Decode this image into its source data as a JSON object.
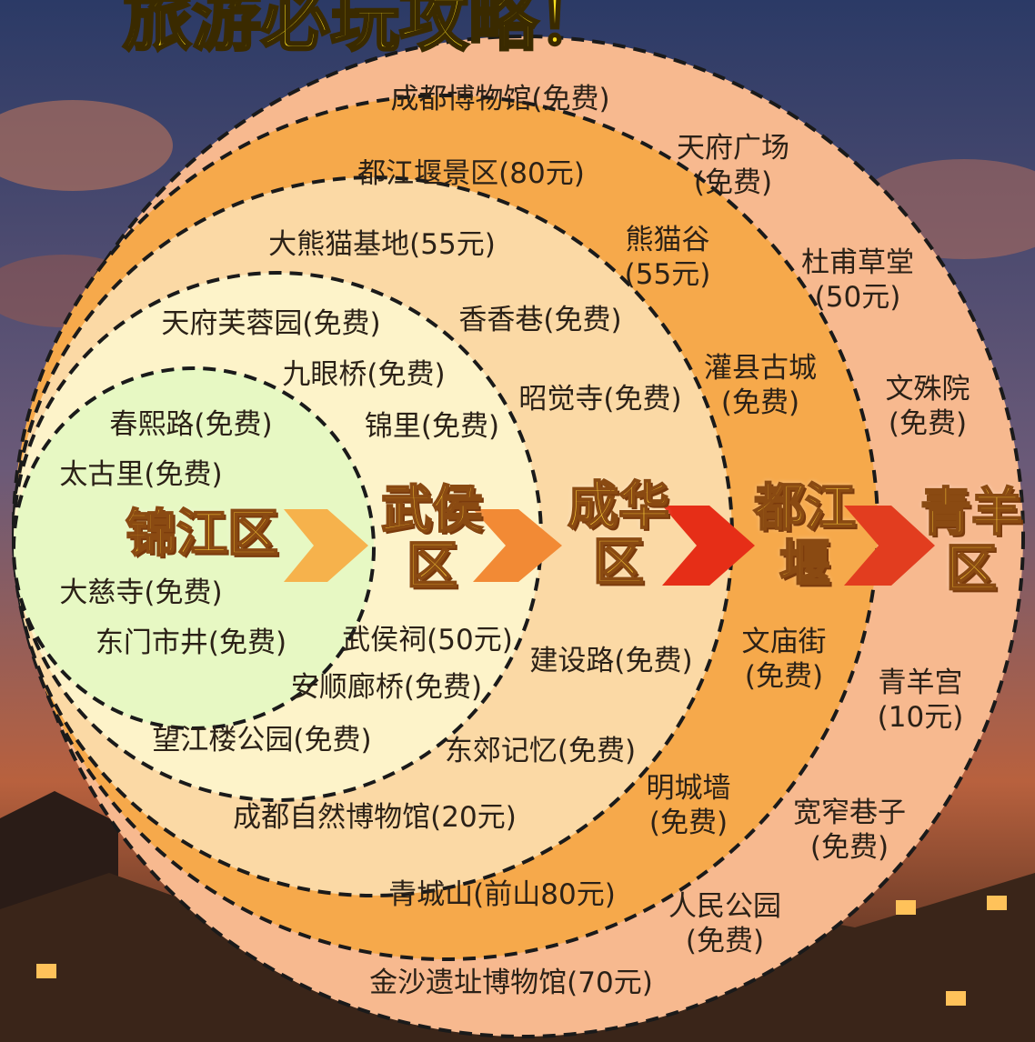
{
  "header": {
    "title": "旅游必玩攻略！"
  },
  "districts": [
    {
      "id": "jinjiang",
      "lines": [
        "锦江区"
      ]
    },
    {
      "id": "wuhou",
      "lines": [
        "武侯",
        "区"
      ]
    },
    {
      "id": "chenghua",
      "lines": [
        "成华",
        "区"
      ]
    },
    {
      "id": "dujiangyan",
      "lines": [
        "都江",
        "堰"
      ]
    },
    {
      "id": "qingyang",
      "lines": [
        "青羊",
        "区"
      ]
    }
  ],
  "rings": {
    "jinjiang": [
      "春熙路(免费)",
      "太古里(免费)",
      "大慈寺(免费)",
      "东门市井(免费)"
    ],
    "wuhou": [
      "天府芙蓉园(免费)",
      "九眼桥(免费)",
      "锦里(免费)",
      "武侯祠(50元)",
      "安顺廊桥(免费)",
      "望江楼公园(免费)"
    ],
    "chenghua": [
      "大熊猫基地(55元)",
      "香香巷(免费)",
      "昭觉寺(免费)",
      "建设路(免费)",
      "东郊记忆(免费)",
      "成都自然博物馆(20元)"
    ],
    "dujiangyan": [
      "都江堰景区(80元)",
      "熊猫谷",
      "(55元)",
      "灌县古城",
      "(免费)",
      "文庙街",
      "(免费)",
      "明城墙",
      "(免费)",
      "青城山(前山80元)"
    ],
    "qingyang": [
      "成都博物馆(免费)",
      "天府广场",
      "(免费)",
      "杜甫草堂",
      "(50元)",
      "文殊院",
      "(免费)",
      "青羊宫",
      "(10元)",
      "宽窄巷子",
      "(免费)",
      "人民公园",
      "(免费)",
      "金沙遗址博物馆(70元)"
    ]
  },
  "colors": {
    "ring_qingyang": "#f7b98f",
    "ring_dujiangyan": "#f6a94b",
    "ring_chenghua": "#fbd9a5",
    "ring_wuhou": "#fdf3c9",
    "ring_jinjiang": "#e7f8c3",
    "sky_top": "#2a3660",
    "sky_bottom": "#b65a3c"
  }
}
